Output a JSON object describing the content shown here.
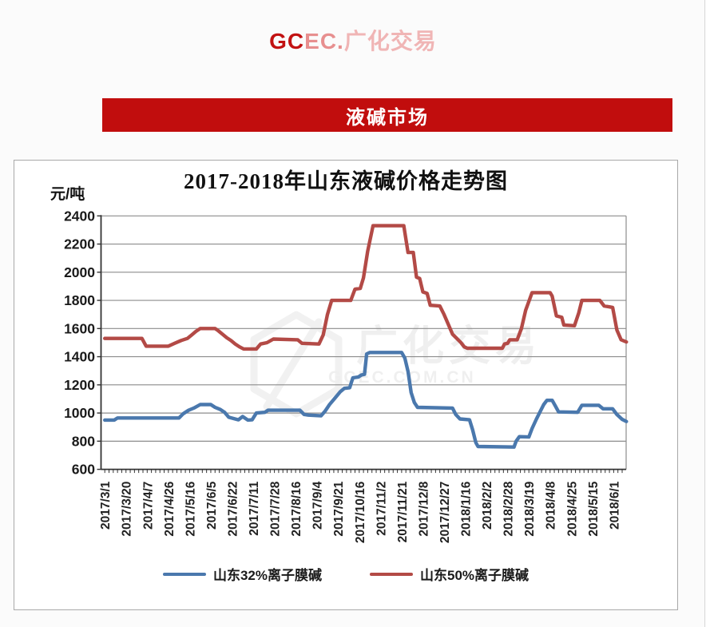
{
  "header": {
    "brand_gc": "GC",
    "brand_ec": "EC.",
    "brand_rest": "广化交易"
  },
  "banner": {
    "label": "液碱市场"
  },
  "chart": {
    "title": "2017-2018年山东液碱价格走势图",
    "y_unit": "元/吨",
    "watermark_main": "广化交易",
    "watermark_sub": "GCEC.COM.CN"
  },
  "colors": {
    "banner_red": "#c10d0d",
    "series_blue": "#4a78ad",
    "series_red": "#b34a46",
    "gridline": "#8c8c8c",
    "axis": "#333333"
  },
  "chart_data": {
    "type": "line",
    "title": "2017-2018年山东液碱价格走势图",
    "ylabel": "元/吨",
    "xlabel": "",
    "ylim": [
      600,
      2400
    ],
    "yticks": [
      600,
      800,
      1000,
      1200,
      1400,
      1600,
      1800,
      2000,
      2200,
      2400
    ],
    "grid": "horizontal",
    "legend_position": "bottom",
    "categories": [
      "2017/3/1",
      "2017/3/20",
      "2017/4/7",
      "2017/4/26",
      "2017/5/16",
      "2017/6/5",
      "2017/6/22",
      "2017/7/11",
      "2017/7/28",
      "2017/8/16",
      "2017/9/4",
      "2017/9/21",
      "2017/10/16",
      "2017/11/2",
      "2017/11/21",
      "2017/12/8",
      "2017/12/27",
      "2018/1/16",
      "2018/2/2",
      "2018/2/28",
      "2018/3/19",
      "2018/4/8",
      "2018/4/25",
      "2018/5/15",
      "2018/6/1"
    ],
    "series": [
      {
        "name": "山东32%离子膜碱",
        "color": "#4a78ad",
        "points": [
          [
            0,
            950
          ],
          [
            0.45,
            950
          ],
          [
            0.6,
            965
          ],
          [
            3.5,
            965
          ],
          [
            3.7,
            995
          ],
          [
            3.95,
            1020
          ],
          [
            4.2,
            1035
          ],
          [
            4.5,
            1060
          ],
          [
            5.0,
            1060
          ],
          [
            5.2,
            1040
          ],
          [
            5.45,
            1025
          ],
          [
            5.65,
            1005
          ],
          [
            5.85,
            970
          ],
          [
            6.3,
            952
          ],
          [
            6.5,
            975
          ],
          [
            6.75,
            950
          ],
          [
            6.95,
            952
          ],
          [
            7.15,
            1000
          ],
          [
            7.55,
            1005
          ],
          [
            7.7,
            1020
          ],
          [
            9.2,
            1020
          ],
          [
            9.4,
            990
          ],
          [
            9.6,
            985
          ],
          [
            10.2,
            980
          ],
          [
            10.4,
            1015
          ],
          [
            10.6,
            1060
          ],
          [
            10.85,
            1105
          ],
          [
            11.1,
            1150
          ],
          [
            11.3,
            1175
          ],
          [
            11.55,
            1180
          ],
          [
            11.7,
            1250
          ],
          [
            11.95,
            1255
          ],
          [
            12.1,
            1270
          ],
          [
            12.25,
            1275
          ],
          [
            12.35,
            1420
          ],
          [
            12.5,
            1430
          ],
          [
            14.0,
            1430
          ],
          [
            14.15,
            1390
          ],
          [
            14.3,
            1295
          ],
          [
            14.45,
            1145
          ],
          [
            14.6,
            1075
          ],
          [
            14.75,
            1040
          ],
          [
            16.4,
            1035
          ],
          [
            16.55,
            990
          ],
          [
            16.75,
            958
          ],
          [
            17.2,
            952
          ],
          [
            17.35,
            880
          ],
          [
            17.5,
            790
          ],
          [
            17.6,
            762
          ],
          [
            19.3,
            758
          ],
          [
            19.4,
            800
          ],
          [
            19.55,
            832
          ],
          [
            20.0,
            830
          ],
          [
            20.15,
            890
          ],
          [
            20.35,
            955
          ],
          [
            20.55,
            1015
          ],
          [
            20.7,
            1060
          ],
          [
            20.85,
            1090
          ],
          [
            21.1,
            1090
          ],
          [
            21.25,
            1050
          ],
          [
            21.4,
            1008
          ],
          [
            22.3,
            1005
          ],
          [
            22.5,
            1055
          ],
          [
            23.3,
            1055
          ],
          [
            23.5,
            1030
          ],
          [
            23.95,
            1030
          ],
          [
            24.15,
            990
          ],
          [
            24.4,
            955
          ],
          [
            24.6,
            940
          ]
        ]
      },
      {
        "name": "山东50%离子膜碱",
        "color": "#b34a46",
        "points": [
          [
            0,
            1530
          ],
          [
            1.75,
            1530
          ],
          [
            1.95,
            1475
          ],
          [
            3.0,
            1475
          ],
          [
            3.3,
            1495
          ],
          [
            3.6,
            1515
          ],
          [
            3.9,
            1530
          ],
          [
            4.1,
            1555
          ],
          [
            4.3,
            1580
          ],
          [
            4.5,
            1600
          ],
          [
            5.2,
            1600
          ],
          [
            5.35,
            1585
          ],
          [
            5.55,
            1560
          ],
          [
            5.75,
            1535
          ],
          [
            5.95,
            1515
          ],
          [
            6.15,
            1490
          ],
          [
            6.35,
            1470
          ],
          [
            6.55,
            1455
          ],
          [
            7.15,
            1455
          ],
          [
            7.35,
            1490
          ],
          [
            7.65,
            1500
          ],
          [
            7.95,
            1525
          ],
          [
            9.1,
            1520
          ],
          [
            9.3,
            1495
          ],
          [
            10.1,
            1490
          ],
          [
            10.3,
            1555
          ],
          [
            10.5,
            1700
          ],
          [
            10.7,
            1800
          ],
          [
            11.6,
            1800
          ],
          [
            11.8,
            1880
          ],
          [
            12.05,
            1885
          ],
          [
            12.2,
            1960
          ],
          [
            12.4,
            2150
          ],
          [
            12.65,
            2330
          ],
          [
            14.1,
            2330
          ],
          [
            14.3,
            2140
          ],
          [
            14.55,
            2140
          ],
          [
            14.7,
            1965
          ],
          [
            14.85,
            1955
          ],
          [
            15.0,
            1860
          ],
          [
            15.2,
            1850
          ],
          [
            15.35,
            1765
          ],
          [
            15.8,
            1760
          ],
          [
            16.0,
            1700
          ],
          [
            16.2,
            1630
          ],
          [
            16.4,
            1560
          ],
          [
            16.6,
            1530
          ],
          [
            16.8,
            1500
          ],
          [
            16.95,
            1470
          ],
          [
            17.1,
            1460
          ],
          [
            18.75,
            1460
          ],
          [
            18.85,
            1490
          ],
          [
            19.0,
            1495
          ],
          [
            19.1,
            1520
          ],
          [
            19.45,
            1520
          ],
          [
            19.65,
            1600
          ],
          [
            19.85,
            1730
          ],
          [
            20.15,
            1855
          ],
          [
            21.0,
            1855
          ],
          [
            21.1,
            1830
          ],
          [
            21.3,
            1690
          ],
          [
            21.55,
            1680
          ],
          [
            21.65,
            1625
          ],
          [
            22.15,
            1620
          ],
          [
            22.35,
            1710
          ],
          [
            22.5,
            1800
          ],
          [
            23.35,
            1800
          ],
          [
            23.55,
            1760
          ],
          [
            23.95,
            1750
          ],
          [
            24.15,
            1590
          ],
          [
            24.35,
            1520
          ],
          [
            24.6,
            1505
          ]
        ]
      }
    ]
  }
}
